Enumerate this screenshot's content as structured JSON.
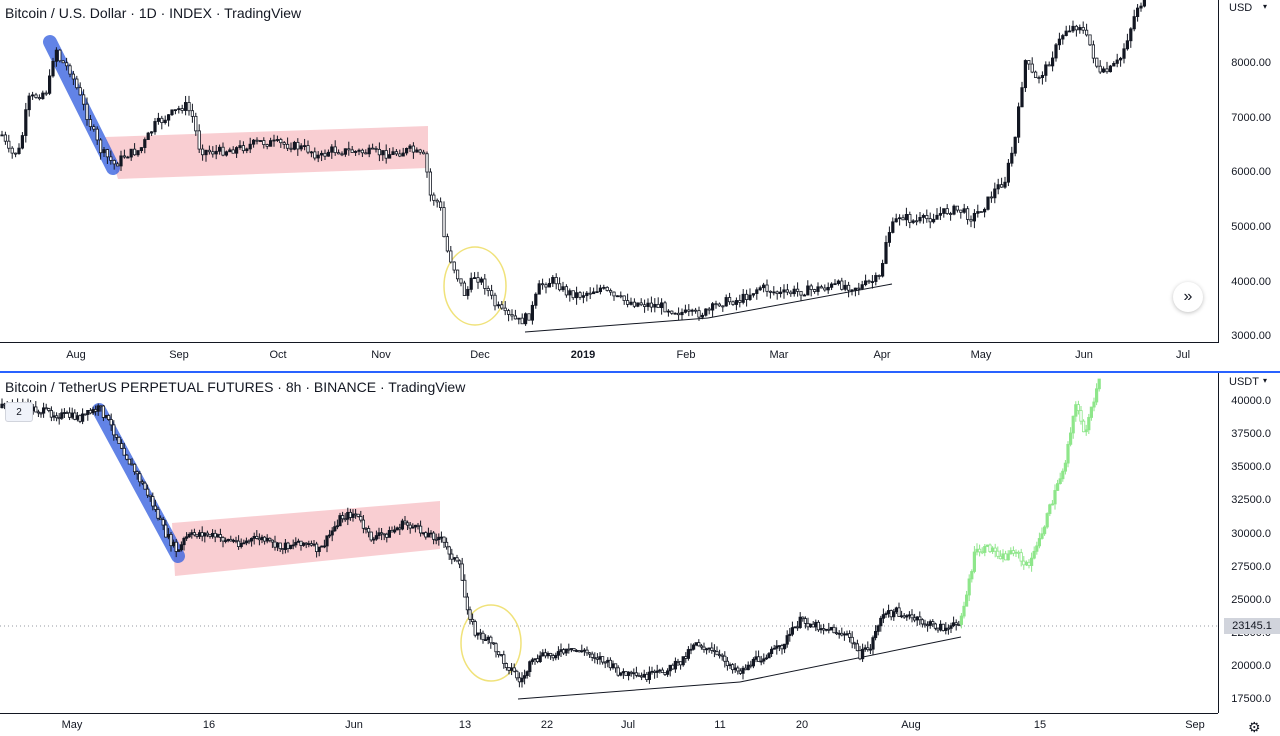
{
  "top_chart": {
    "title": "Bitcoin / U.S. Dollar · 1D · INDEX · TradingView",
    "currency": "USD",
    "price_labels": [
      "8000.00",
      "7000.00",
      "6000.00",
      "5000.00",
      "4000.00",
      "3000.00"
    ],
    "time_labels": [
      "Aug",
      "Sep",
      "Oct",
      "Nov",
      "Dec",
      "2019",
      "Feb",
      "Mar",
      "Apr",
      "May",
      "Jun",
      "Jul"
    ],
    "scroll_icon": "double-chevron-right-icon"
  },
  "bottom_chart": {
    "title": "Bitcoin / TetherUS PERPETUAL FUTURES · 8h · BINANCE · TradingView",
    "currency": "USDT",
    "legend_toggle": "2",
    "price_labels": [
      "40000.0",
      "37500.0",
      "35000.0",
      "32500.0",
      "30000.0",
      "27500.0",
      "25000.0",
      "22500.0",
      "20000.0",
      "17500.0"
    ],
    "last_price": "23145.1",
    "time_labels": [
      "May",
      "16",
      "Jun",
      "13",
      "22",
      "Jul",
      "11",
      "20",
      "Aug",
      "15",
      "Sep"
    ],
    "settings_icon": "gear-icon"
  },
  "colors": {
    "candle": "#131722",
    "projection": "#8ee68a",
    "blue_highlight": "#3b64e0",
    "pink_channel": "#f4a6ad",
    "circle": "#f0e27a",
    "divider": "#2962ff"
  }
}
